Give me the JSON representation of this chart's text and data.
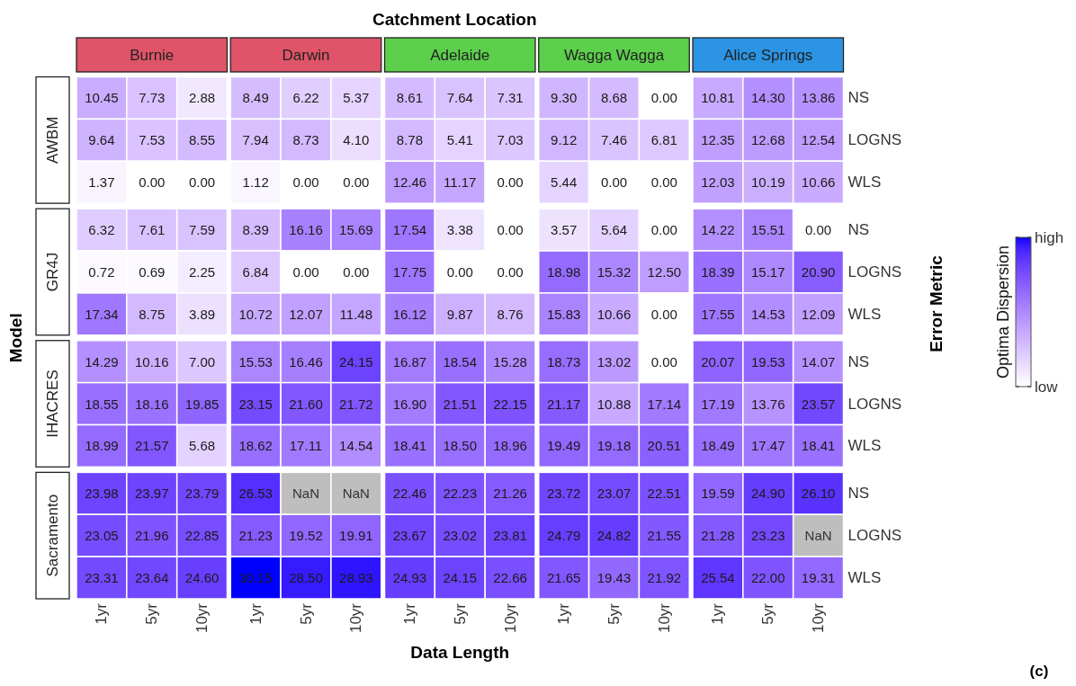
{
  "chart_data": [
    {
      "type": "heatmap",
      "title": "Catchment Location",
      "xlabel": "Data Length",
      "ylabel": "Model",
      "y2label": "Error Metric",
      "categories": [
        "1yr",
        "5yr",
        "10yr",
        "1yr",
        "5yr",
        "10yr",
        "1yr",
        "5yr",
        "10yr",
        "1yr",
        "5yr",
        "10yr",
        "1yr",
        "5yr",
        "10yr"
      ],
      "y_categories": [
        "NS",
        "LOGNS",
        "WLS",
        "NS",
        "LOGNS",
        "WLS",
        "NS",
        "LOGNS",
        "WLS",
        "NS",
        "LOGNS",
        "WLS"
      ],
      "cells": [
        [
          10.45,
          7.73,
          2.88,
          8.49,
          6.22,
          5.37,
          8.61,
          7.64,
          7.31,
          9.3,
          8.68,
          0,
          10.81,
          14.3,
          13.86
        ],
        [
          9.64,
          7.53,
          8.55,
          7.94,
          8.73,
          4.1,
          8.78,
          5.41,
          7.03,
          9.12,
          7.46,
          6.81,
          12.35,
          12.68,
          12.54
        ],
        [
          1.37,
          0,
          0,
          1.12,
          0,
          0,
          12.46,
          11.17,
          0,
          5.44,
          0,
          0,
          12.03,
          10.19,
          10.66
        ],
        [
          6.32,
          7.61,
          7.59,
          8.39,
          16.16,
          15.69,
          17.54,
          3.38,
          0,
          3.57,
          5.64,
          0,
          14.22,
          15.51,
          0
        ],
        [
          0.72,
          0.69,
          2.25,
          6.84,
          0,
          0,
          17.75,
          0,
          0,
          18.98,
          15.32,
          12.5,
          18.39,
          15.17,
          20.9
        ],
        [
          17.34,
          8.75,
          3.89,
          10.72,
          12.07,
          11.48,
          16.12,
          9.87,
          8.76,
          15.83,
          10.66,
          0,
          17.55,
          14.53,
          12.09
        ],
        [
          14.29,
          10.16,
          7,
          15.53,
          16.46,
          24.15,
          16.87,
          18.54,
          15.28,
          18.73,
          13.02,
          0,
          20.07,
          19.53,
          14.07
        ],
        [
          18.55,
          18.16,
          19.85,
          23.15,
          21.6,
          21.72,
          16.9,
          21.51,
          22.15,
          21.17,
          10.88,
          17.14,
          17.19,
          13.76,
          23.57
        ],
        [
          18.99,
          21.57,
          5.68,
          18.62,
          17.11,
          14.54,
          18.41,
          18.5,
          18.96,
          19.49,
          19.18,
          20.51,
          18.49,
          17.47,
          18.41
        ],
        [
          23.98,
          23.97,
          23.79,
          26.53,
          null,
          null,
          22.46,
          22.23,
          21.26,
          23.72,
          23.07,
          22.51,
          19.59,
          24.9,
          26.1
        ],
        [
          23.05,
          21.96,
          22.85,
          21.23,
          19.52,
          19.91,
          23.67,
          23.02,
          23.81,
          24.79,
          24.82,
          21.55,
          21.28,
          23.23,
          null
        ],
        [
          23.31,
          23.64,
          24.6,
          30.15,
          28.5,
          28.93,
          24.93,
          24.15,
          22.66,
          21.65,
          19.43,
          21.92,
          25.54,
          22,
          19.31
        ]
      ],
      "cell_labels": [
        [
          "10.45",
          "7.73",
          "2.88",
          "8.49",
          "6.22",
          "5.37",
          "8.61",
          "7.64",
          "7.31",
          "9.30",
          "8.68",
          "0.00",
          "10.81",
          "14.30",
          "13.86"
        ],
        [
          "9.64",
          "7.53",
          "8.55",
          "7.94",
          "8.73",
          "4.10",
          "8.78",
          "5.41",
          "7.03",
          "9.12",
          "7.46",
          "6.81",
          "12.35",
          "12.68",
          "12.54"
        ],
        [
          "1.37",
          "0.00",
          "0.00",
          "1.12",
          "0.00",
          "0.00",
          "12.46",
          "11.17",
          "0.00",
          "5.44",
          "0.00",
          "0.00",
          "12.03",
          "10.19",
          "10.66"
        ],
        [
          "6.32",
          "7.61",
          "7.59",
          "8.39",
          "16.16",
          "15.69",
          "17.54",
          "3.38",
          "0.00",
          "3.57",
          "5.64",
          "0.00",
          "14.22",
          "15.51",
          "0.00"
        ],
        [
          "0.72",
          "0.69",
          "2.25",
          "6.84",
          "0.00",
          "0.00",
          "17.75",
          "0.00",
          "0.00",
          "18.98",
          "15.32",
          "12.50",
          "18.39",
          "15.17",
          "20.90"
        ],
        [
          "17.34",
          "8.75",
          "3.89",
          "10.72",
          "12.07",
          "11.48",
          "16.12",
          "9.87",
          "8.76",
          "15.83",
          "10.66",
          "0.00",
          "17.55",
          "14.53",
          "12.09"
        ],
        [
          "14.29",
          "10.16",
          "7.00",
          "15.53",
          "16.46",
          "24.15",
          "16.87",
          "18.54",
          "15.28",
          "18.73",
          "13.02",
          "0.00",
          "20.07",
          "19.53",
          "14.07"
        ],
        [
          "18.55",
          "18.16",
          "19.85",
          "23.15",
          "21.60",
          "21.72",
          "16.90",
          "21.51",
          "22.15",
          "21.17",
          "10.88",
          "17.14",
          "17.19",
          "13.76",
          "23.57"
        ],
        [
          "18.99",
          "21.57",
          "5.68",
          "18.62",
          "17.11",
          "14.54",
          "18.41",
          "18.50",
          "18.96",
          "19.49",
          "19.18",
          "20.51",
          "18.49",
          "17.47",
          "18.41"
        ],
        [
          "23.98",
          "23.97",
          "23.79",
          "26.53",
          "NaN",
          "NaN",
          "22.46",
          "22.23",
          "21.26",
          "23.72",
          "23.07",
          "22.51",
          "19.59",
          "24.90",
          "26.10"
        ],
        [
          "23.05",
          "21.96",
          "22.85",
          "21.23",
          "19.52",
          "19.91",
          "23.67",
          "23.02",
          "23.81",
          "24.79",
          "24.82",
          "21.55",
          "21.28",
          "23.23",
          "NaN"
        ],
        [
          "23.31",
          "23.64",
          "24.60",
          "30.15",
          "28.50",
          "28.93",
          "24.93",
          "24.15",
          "22.66",
          "21.65",
          "19.43",
          "21.92",
          "25.54",
          "22.00",
          "19.31"
        ]
      ],
      "clim": [
        0,
        30.15
      ],
      "clabel": "Optima Dispersion",
      "cticks": [
        {
          "value": 0,
          "label": "low"
        },
        {
          "value": 30.15,
          "label": "high"
        }
      ],
      "annotations": [
        "(c)"
      ]
    },
    {
      "type": "other",
      "categories": [
        "Burnie",
        "Darwin",
        "Adelaide",
        "Wagga Wagga",
        "Alice Springs"
      ],
      "y_categories": [
        "AWBM",
        "GR4J",
        "IHACRES",
        "Sacramento"
      ]
    }
  ]
}
